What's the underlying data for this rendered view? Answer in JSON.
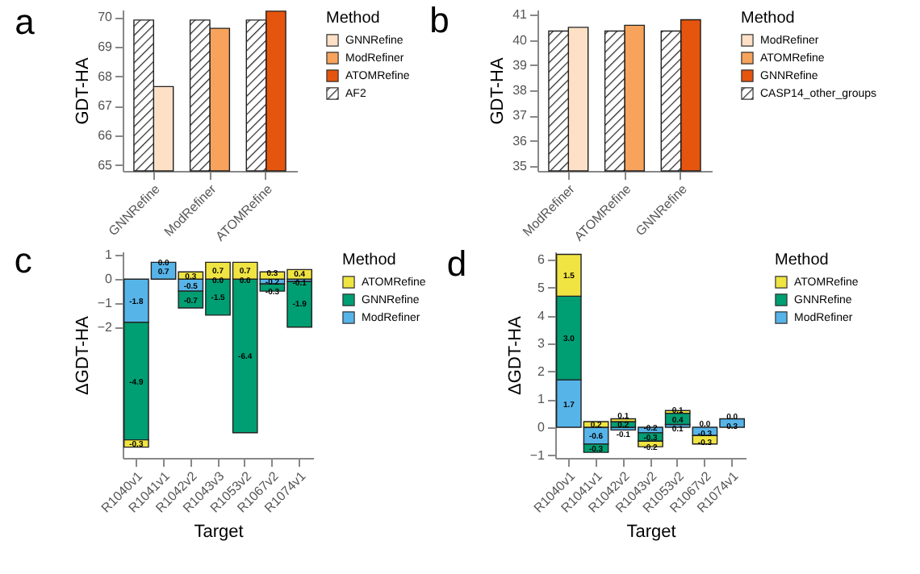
{
  "chart_data": [
    {
      "type": "bar",
      "title": "a",
      "ylabel": "GDT-HA",
      "legend_title": "Method",
      "legend": "right",
      "categories": [
        "GNNRefine",
        "ModRefiner",
        "ATOMRefine"
      ],
      "ylim": [
        64.8,
        70.25
      ],
      "yticks": [
        65,
        66,
        67,
        68,
        69,
        70
      ],
      "series": [
        {
          "name": "GNNRefine",
          "color": "#fde0c5",
          "values": [
            67.65,
            null,
            null
          ]
        },
        {
          "name": "ModRefiner",
          "color": "#f7a35c",
          "values": [
            null,
            69.62,
            null
          ]
        },
        {
          "name": "ATOMRefine",
          "color": "#e6550d",
          "values": [
            null,
            null,
            70.2
          ]
        },
        {
          "name": "AF2",
          "color": "#222222",
          "values": [
            69.9,
            69.9,
            69.9
          ]
        }
      ]
    },
    {
      "type": "bar",
      "title": "b",
      "ylabel": "GDT-HA",
      "legend_title": "Method",
      "legend": "right",
      "categories": [
        "ModRefiner",
        "ATOMRefine",
        "GNNRefine"
      ],
      "ylim": [
        34.8,
        41.2
      ],
      "yticks": [
        35,
        36,
        37,
        38,
        39,
        40,
        41
      ],
      "series": [
        {
          "name": "ModRefiner",
          "color": "#fde0c5",
          "values": [
            40.5,
            null,
            null
          ]
        },
        {
          "name": "ATOMRefine",
          "color": "#f7a35c",
          "values": [
            null,
            40.58,
            null
          ]
        },
        {
          "name": "GNNRefine",
          "color": "#e6550d",
          "values": [
            null,
            null,
            40.8
          ]
        },
        {
          "name": "CASP14_other_groups",
          "color": "#222222",
          "values": [
            40.35,
            40.35,
            40.35
          ]
        }
      ]
    },
    {
      "type": "bar",
      "title": "c",
      "xlabel": "Target",
      "ylabel": "ΔGDT-HA",
      "legend_title": "Method",
      "legend": "right",
      "stacked": true,
      "categories": [
        "R1040v1",
        "R1041v1",
        "R1042v2",
        "R1043v3",
        "R1053v2",
        "R1067v2",
        "R1074v1"
      ],
      "ylim": [
        -7.45,
        1.15
      ],
      "yticks": [
        -2,
        -1,
        0,
        1
      ],
      "series": [
        {
          "name": "ModRefiner",
          "color": "#56b4e9",
          "values": [
            -1.8,
            0.7,
            -0.5,
            0.0,
            0.0,
            -0.2,
            -0.1
          ],
          "value_labels": [
            "-1.8",
            "0.7",
            "-0.5",
            "0.0",
            "0.0",
            "-0.2",
            "-0.1"
          ]
        },
        {
          "name": "GNNRefine",
          "color": "#009e73",
          "values": [
            -4.9,
            0.0,
            -0.7,
            -1.5,
            -6.4,
            -0.3,
            -1.9
          ],
          "value_labels": [
            "-4.9",
            "0.0",
            "-0.7",
            "-1.5",
            "-6.4",
            "-0.3",
            "-1.9"
          ]
        },
        {
          "name": "ATOMRefine",
          "color": "#f0e442",
          "values": [
            -0.3,
            null,
            0.3,
            0.7,
            0.7,
            0.3,
            0.4
          ],
          "value_labels": [
            "-0.3",
            null,
            "0.3",
            "0.7",
            "0.7",
            "0.3",
            "0.4"
          ]
        }
      ]
    },
    {
      "type": "bar",
      "title": "d",
      "xlabel": "Target",
      "ylabel": "ΔGDT-HA",
      "legend_title": "Method",
      "legend": "right",
      "stacked": true,
      "categories": [
        "R1040v1",
        "R1041v1",
        "R1042v2",
        "R1043v2",
        "R1053v2",
        "R1067v2",
        "R1074v1"
      ],
      "ylim": [
        -1.1,
        6.3
      ],
      "yticks": [
        -1,
        0,
        1,
        2,
        3,
        4,
        5,
        6
      ],
      "series": [
        {
          "name": "ModRefiner",
          "color": "#56b4e9",
          "values": [
            1.7,
            -0.6,
            -0.1,
            -0.2,
            0.1,
            -0.3,
            0.3
          ],
          "value_labels": [
            "1.7",
            "-0.6",
            "-0.1",
            "-0.2",
            "0.1",
            "-0.3",
            "0.3"
          ]
        },
        {
          "name": "GNNRefine",
          "color": "#009e73",
          "values": [
            3.0,
            -0.3,
            0.2,
            -0.3,
            0.4,
            0.0,
            null
          ],
          "value_labels": [
            "3.0",
            "-0.3",
            "0.2",
            "-0.3",
            "0.4",
            "0.0",
            null
          ]
        },
        {
          "name": "ATOMRefine",
          "color": "#f0e442",
          "values": [
            1.5,
            0.2,
            0.1,
            -0.2,
            0.1,
            -0.3,
            0.0
          ],
          "value_labels": [
            "1.5",
            "0.2",
            "0.1",
            "-0.2",
            "0.1",
            "-0.3",
            "0.0"
          ]
        }
      ]
    }
  ]
}
